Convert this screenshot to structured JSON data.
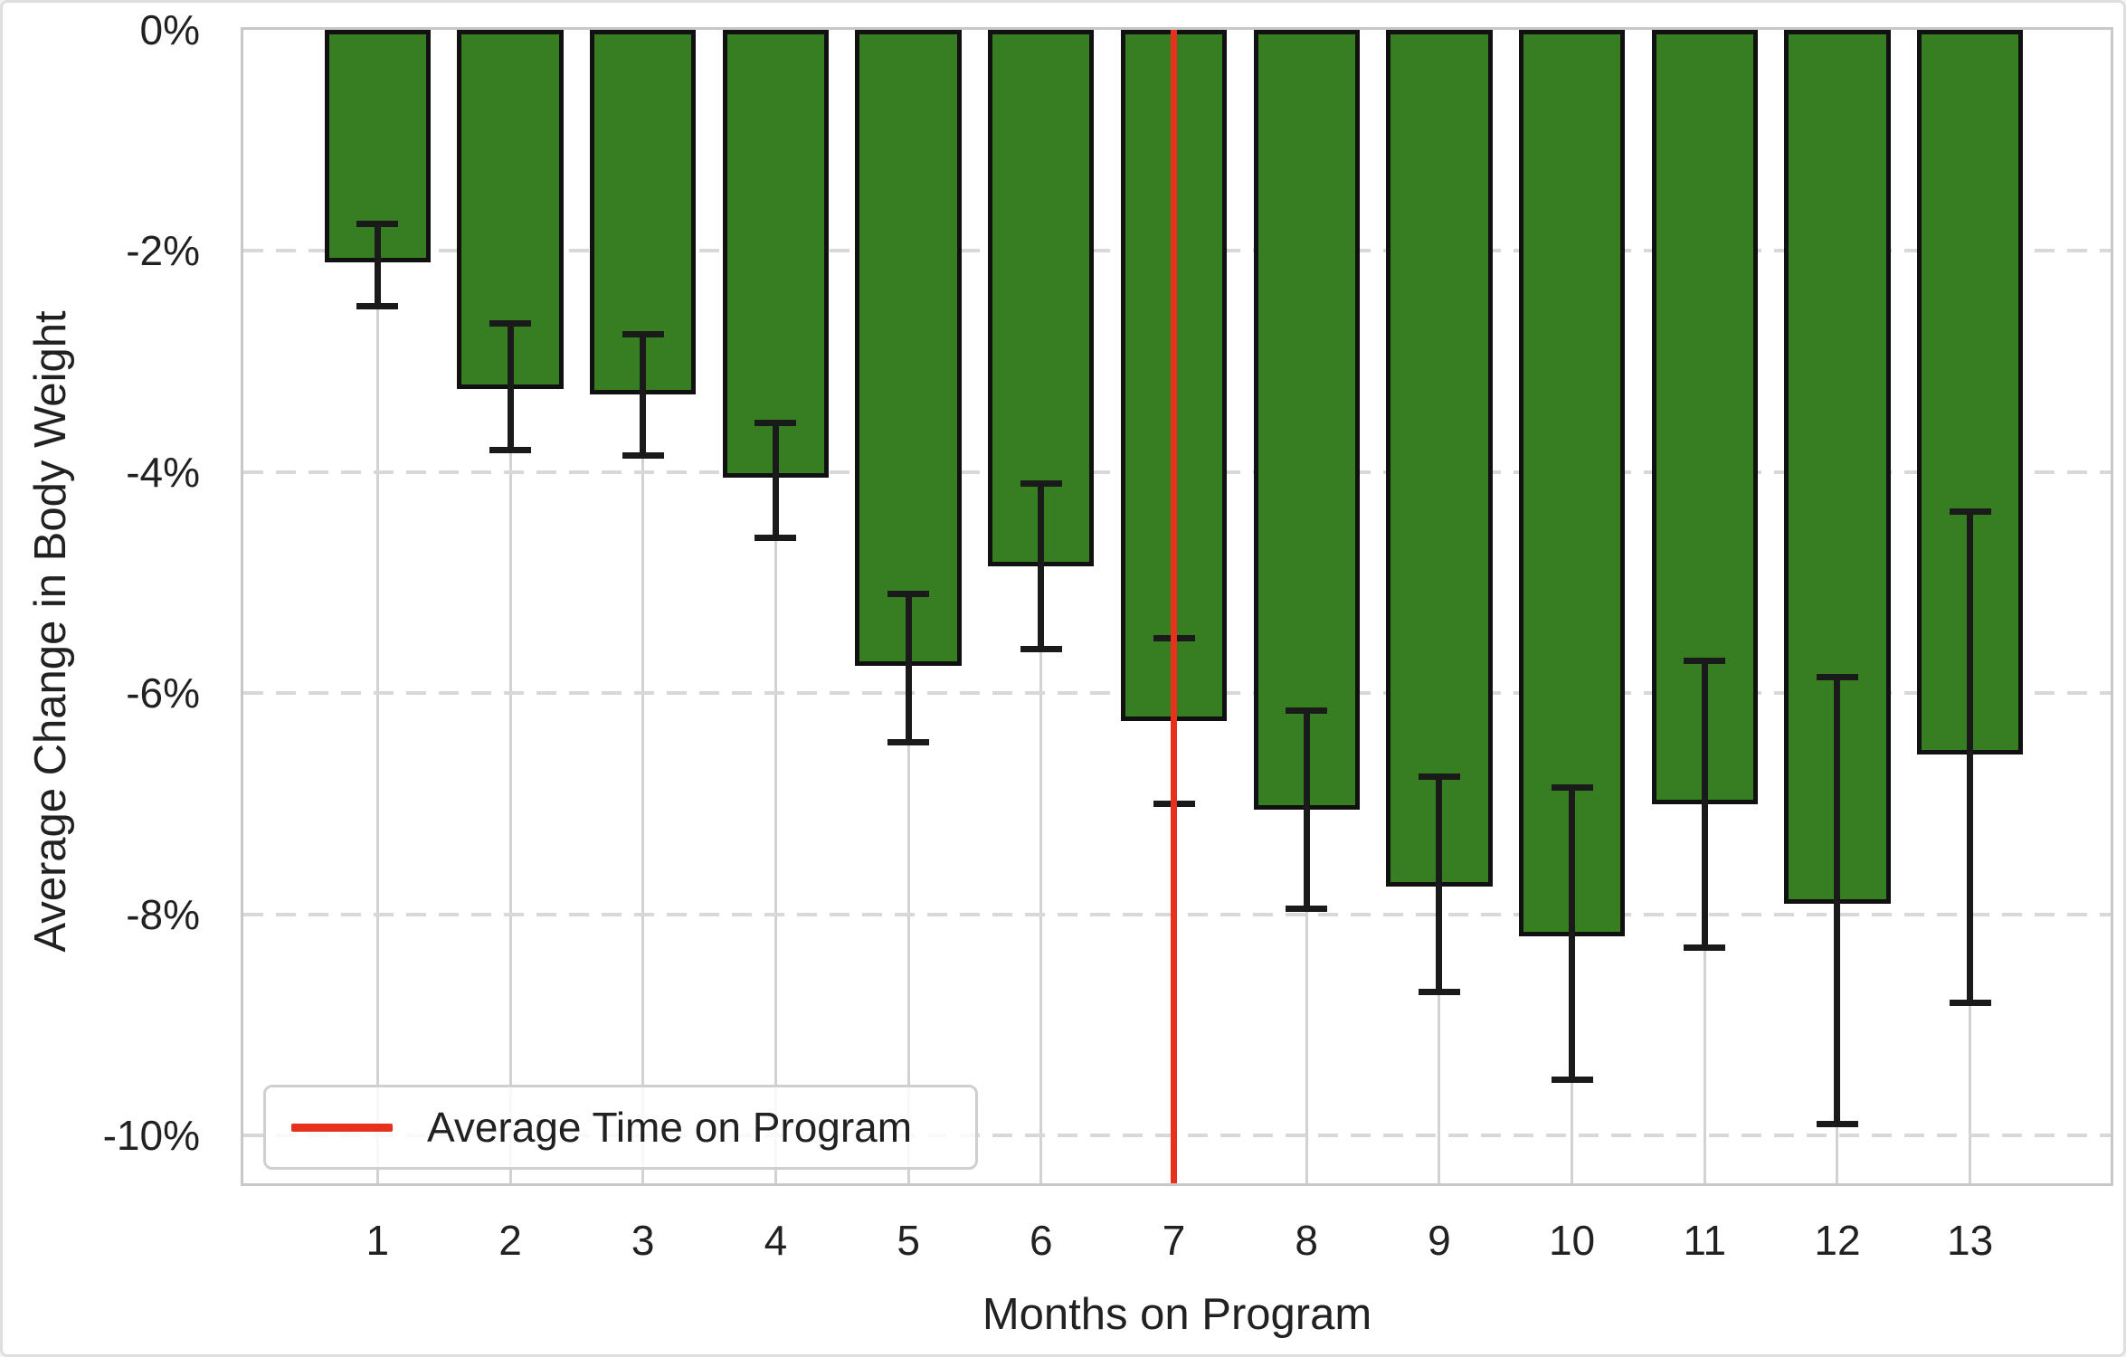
{
  "chart_data": {
    "type": "bar",
    "title": "",
    "xlabel": "Months on Program",
    "ylabel": "Average Change in Body Weight",
    "categories": [
      "1",
      "2",
      "3",
      "4",
      "5",
      "6",
      "7",
      "8",
      "9",
      "10",
      "11",
      "12",
      "13"
    ],
    "values": [
      -2.1,
      -3.25,
      -3.3,
      -4.05,
      -5.75,
      -4.85,
      -6.25,
      -7.05,
      -7.75,
      -8.2,
      -7.0,
      -7.9,
      -6.55
    ],
    "error_high": [
      -1.75,
      -2.65,
      -2.75,
      -3.55,
      -5.1,
      -4.1,
      -5.5,
      -6.15,
      -6.75,
      -6.85,
      -5.7,
      -5.85,
      -4.35
    ],
    "error_low": [
      -2.5,
      -3.8,
      -3.85,
      -4.6,
      -6.45,
      -5.6,
      -7.0,
      -7.95,
      -8.7,
      -9.5,
      -8.3,
      -9.9,
      -8.8
    ],
    "yticks": [
      0,
      -2,
      -4,
      -6,
      -8,
      -10
    ],
    "ytick_labels": [
      "0%",
      "-2%",
      "-4%",
      "-6%",
      "-8%",
      "-10%"
    ],
    "ylim": [
      0,
      -10.43
    ],
    "bar_width_fraction": 0.8,
    "grid": "horizontal dashed, vertical solid, axisbelow",
    "vline": {
      "x": 6.5,
      "label": "Average Time on Program"
    },
    "legend": {
      "position": "lower left",
      "label": "Average Time on Program"
    },
    "colors": {
      "bar_fill": "#377d21",
      "bar_edge": "#111111",
      "error_bar": "#1a1a1a",
      "vline_red": "#e8301f",
      "h_grid": "#d8d8d8",
      "v_grid": "#d2d2d2",
      "spine": "#c8c8c8",
      "text": "#212121"
    }
  }
}
